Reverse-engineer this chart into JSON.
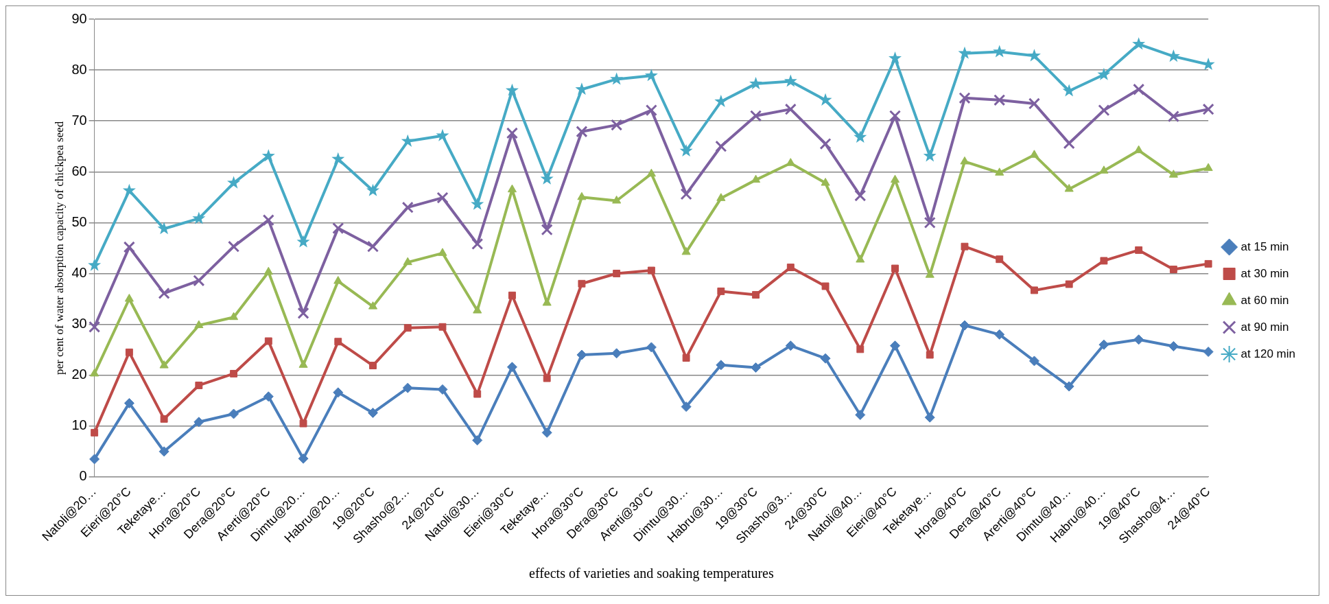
{
  "chart_data": {
    "type": "line",
    "xlabel": "effects of varieties and soaking temperatures",
    "ylabel": "per cent of water absorption capacity of chickpea seed",
    "categories": [
      "Natoli@20…",
      "Eieri@20°C",
      "Teketaye…",
      "Hora@20°C",
      "Dera@20°C",
      "Arerti@20°C",
      "Dimtu@20…",
      "Habru@20…",
      "19@20°C",
      "Shasho@2…",
      "24@20°C",
      "Natoli@30…",
      "Eieri@30°C",
      "Teketaye…",
      "Hora@30°C",
      "Dera@30°C",
      "Arerti@30°C",
      "Dimtu@30…",
      "Habru@30…",
      "19@30°C",
      "Shasho@3…",
      "24@30°C",
      "Natoli@40…",
      "Eieri@40°C",
      "Teketaye…",
      "Hora@40°C",
      "Dera@40°C",
      "Arerti@40°C",
      "Dimtu@40…",
      "Habru@40…",
      "19@40°C",
      "Shasho@4…",
      "24@40°C"
    ],
    "series": [
      {
        "name": "at 15 min",
        "color": "#4a7ebb",
        "marker": "diamond",
        "values": [
          3.5,
          14.5,
          5,
          10.8,
          12.4,
          15.8,
          3.6,
          16.6,
          12.6,
          17.5,
          17.2,
          7.2,
          21.6,
          8.7,
          24,
          24.3,
          25.5,
          13.8,
          22,
          21.5,
          25.8,
          23.3,
          12.2,
          25.8,
          11.7,
          29.8,
          28,
          22.8,
          17.8,
          26,
          27,
          25.7,
          24.6
        ]
      },
      {
        "name": "at 30 min",
        "color": "#be4b48",
        "marker": "square",
        "values": [
          8.7,
          24.5,
          11.4,
          18,
          20.3,
          26.7,
          10.5,
          26.6,
          21.9,
          29.3,
          29.5,
          16.3,
          35.7,
          19.4,
          38,
          40,
          40.6,
          23.4,
          36.5,
          35.8,
          41.2,
          37.5,
          25.1,
          41,
          24,
          45.3,
          42.8,
          36.7,
          37.9,
          42.5,
          44.6,
          40.8,
          41.9
        ]
      },
      {
        "name": "at 60 min",
        "color": "#98b954",
        "marker": "triangle",
        "values": [
          20.3,
          35,
          21.9,
          29.8,
          31.4,
          40.3,
          22,
          38.5,
          33.5,
          42.2,
          44,
          32.7,
          56.5,
          34.2,
          55,
          54.3,
          59.6,
          44.2,
          54.8,
          58.4,
          61.7,
          57.8,
          42.7,
          58.4,
          39.7,
          62,
          59.8,
          63.3,
          56.6,
          60.2,
          64.2,
          59.4,
          60.7
        ]
      },
      {
        "name": "at 90 min",
        "color": "#7d60a0",
        "marker": "cross",
        "values": [
          29.5,
          45.2,
          36.1,
          38.6,
          45.3,
          50.5,
          32.2,
          48.9,
          45.3,
          53,
          54.9,
          45.8,
          67.6,
          48.6,
          67.9,
          69.2,
          72.1,
          55.6,
          65,
          71,
          72.3,
          65.5,
          55.3,
          71,
          50,
          74.5,
          74.1,
          73.4,
          65.6,
          72.1,
          76.2,
          70.9,
          72.3
        ]
      },
      {
        "name": "at 120 min",
        "color": "#46aac5",
        "marker": "star",
        "values": [
          41.6,
          56.3,
          48.8,
          50.8,
          57.8,
          63.1,
          46.2,
          62.5,
          56.3,
          66,
          67.1,
          53.6,
          76,
          58.6,
          76.2,
          78.2,
          78.9,
          64.1,
          73.8,
          77.3,
          77.8,
          74.1,
          66.8,
          82.3,
          63.1,
          83.3,
          83.6,
          82.8,
          75.9,
          79.1,
          85.1,
          82.7,
          81.1
        ]
      }
    ],
    "ylim": [
      0,
      90
    ],
    "yticks": [
      0,
      10,
      20,
      30,
      40,
      50,
      60,
      70,
      80,
      90
    ],
    "grid": "y",
    "legend": "right"
  }
}
